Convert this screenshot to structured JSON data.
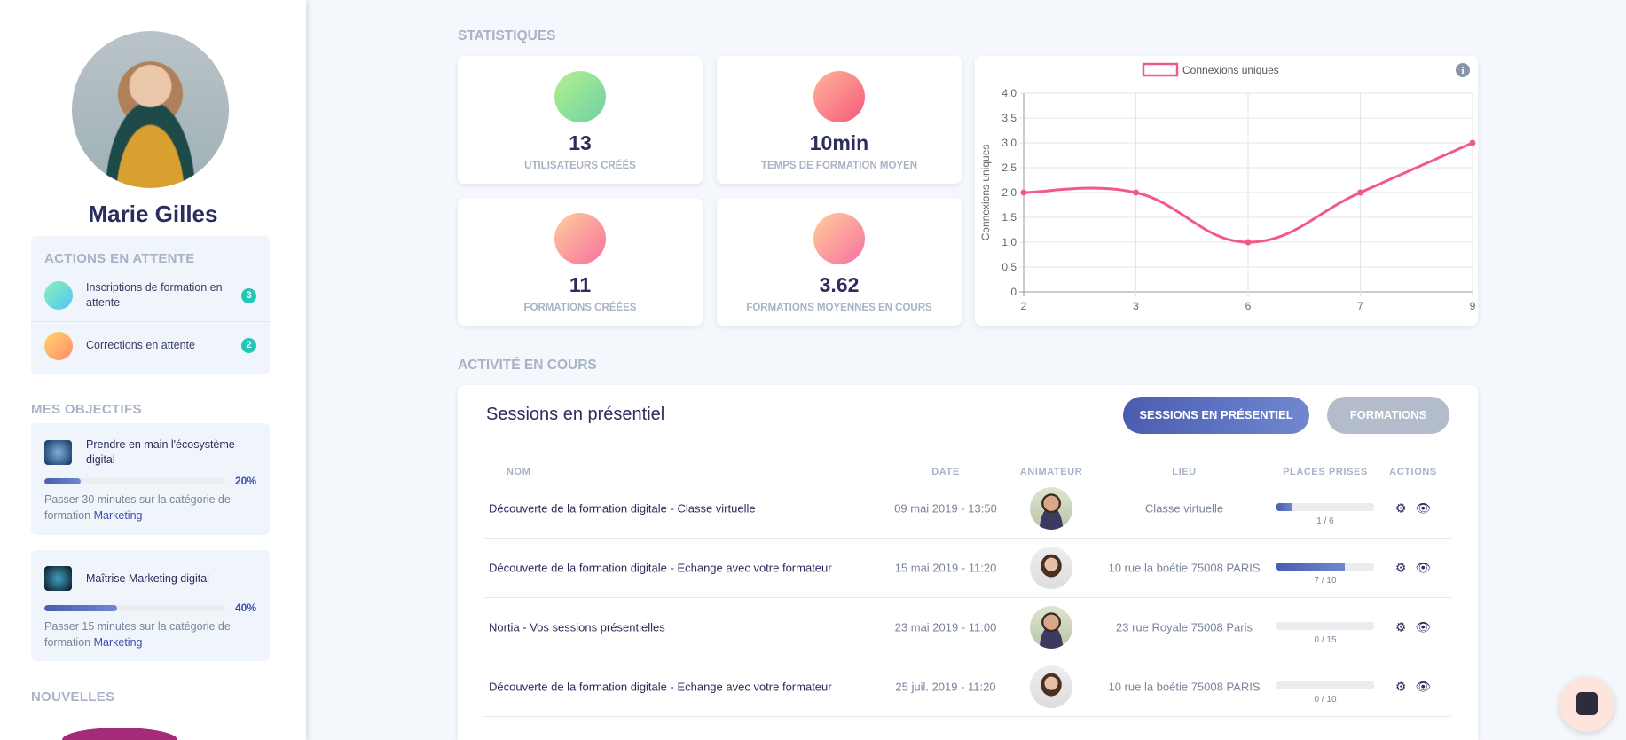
{
  "user": {
    "name": "Marie Gilles"
  },
  "pending": {
    "title": "ACTIONS EN ATTENTE",
    "items": [
      {
        "label": "Inscriptions de formation en attente",
        "count": "3",
        "icon": "book-reader-icon"
      },
      {
        "label": "Corrections en attente",
        "count": "2",
        "icon": "pencil-icon"
      }
    ]
  },
  "objectives": {
    "title": "MES OBJECTIFS",
    "items": [
      {
        "title": "Prendre en main l'écosystème digital",
        "percent": "20%",
        "progress": 20,
        "desc": "Passer 30 minutes sur la catégorie de formation ",
        "category": "Marketing"
      },
      {
        "title": "Maîtrise Marketing digital",
        "percent": "40%",
        "progress": 40,
        "desc": "Passer 15 minutes sur la catégorie de formation ",
        "category": "Marketing"
      }
    ]
  },
  "news": {
    "title": "NOUVELLES"
  },
  "stats": {
    "title": "STATISTIQUES",
    "cards": [
      {
        "value": "13",
        "label": "UTILISATEURS CRÉÉS",
        "icon": "user-check-icon"
      },
      {
        "value": "10min",
        "label": "TEMPS DE FORMATION MOYEN",
        "icon": "clock-icon"
      },
      {
        "value": "11",
        "label": "FORMATIONS CRÉÉES",
        "icon": "course-icon"
      },
      {
        "value": "3.62",
        "label": "FORMATIONS MOYENNES EN COURS",
        "icon": "course-icon"
      }
    ]
  },
  "chart_data": {
    "type": "line",
    "legend": "Connexions uniques",
    "legend_position": "top",
    "ylabel": "Connexions uniques",
    "categories": [
      "2",
      "3",
      "6",
      "7",
      "9"
    ],
    "values": [
      2,
      2,
      1,
      2,
      3
    ],
    "ylim": [
      0,
      4
    ],
    "yticks": [
      "0",
      "0.5",
      "1.0",
      "1.5",
      "2.0",
      "2.5",
      "3.0",
      "3.5",
      "4.0"
    ],
    "grid": true,
    "color": "#f25a85"
  },
  "activity": {
    "title": "ACTIVITÉ EN COURS",
    "card_title": "Sessions en présentiel",
    "tabs": [
      {
        "label": "SESSIONS EN PRÉSENTIEL",
        "active": true
      },
      {
        "label": "FORMATIONS",
        "active": false
      }
    ],
    "columns": [
      "NOM",
      "DATE",
      "ANIMATEUR",
      "LIEU",
      "PLACES PRISES",
      "ACTIONS"
    ],
    "rows": [
      {
        "name": "Découverte de la formation digitale - Classe virtuelle",
        "date": "09 mai 2019 - 13:50",
        "trainer": "male",
        "place": "Classe virtuelle",
        "places": "1 / 6",
        "taken": 1,
        "total": 6
      },
      {
        "name": "Découverte de la formation digitale - Echange avec votre formateur",
        "date": "15 mai 2019 - 11:20",
        "trainer": "female",
        "place": "10 rue la boétie 75008 PARIS",
        "places": "7 / 10",
        "taken": 7,
        "total": 10
      },
      {
        "name": "Nortia - Vos sessions présentielles",
        "date": "23 mai 2019 - 11:00",
        "trainer": "male",
        "place": "23 rue Royale 75008 Paris",
        "places": "0 / 15",
        "taken": 0,
        "total": 15
      },
      {
        "name": "Découverte de la formation digitale - Echange avec votre formateur",
        "date": "25 juil. 2019 - 11:20",
        "trainer": "female",
        "place": "10 rue la boétie 75008 PARIS",
        "places": "0 / 10",
        "taken": 0,
        "total": 10
      }
    ]
  },
  "colors": {
    "accent": "#4a5cb0",
    "teal": "#22c7b8",
    "pink": "#f25a85"
  }
}
